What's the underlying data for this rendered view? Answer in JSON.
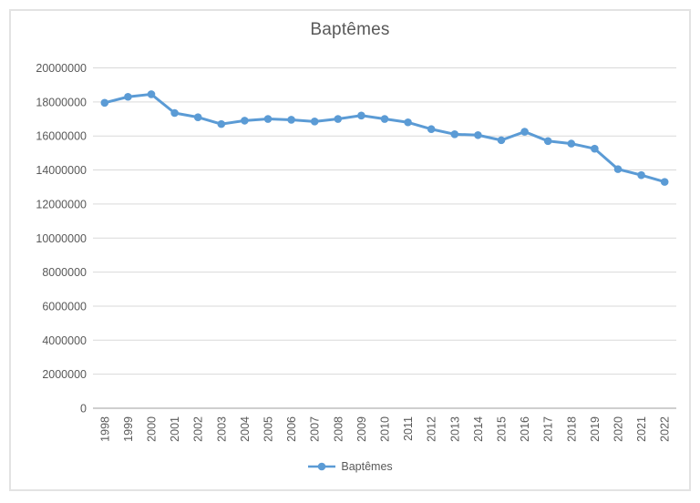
{
  "chart_style": {
    "line_color": "#5B9BD5",
    "gridline_color": "#d9d9d9",
    "axis_line_color": "#bfbfbf",
    "text_color": "#595959",
    "frame_border_color": "#e3e3e3"
  },
  "chart_data": {
    "type": "line",
    "title": "Baptêmes",
    "xlabel": "",
    "ylabel": "",
    "grid": true,
    "legend_position": "bottom",
    "x": [
      1998,
      1999,
      2000,
      2001,
      2002,
      2003,
      2004,
      2005,
      2006,
      2007,
      2008,
      2009,
      2010,
      2011,
      2012,
      2013,
      2014,
      2015,
      2016,
      2017,
      2018,
      2019,
      2020,
      2021,
      2022
    ],
    "series": [
      {
        "name": "Baptêmes",
        "color": "#5B9BD5",
        "marker": "circle",
        "values": [
          17950000,
          18300000,
          18450000,
          17350000,
          17100000,
          16700000,
          16900000,
          17000000,
          16950000,
          16850000,
          17000000,
          17200000,
          17000000,
          16800000,
          16400000,
          16100000,
          16050000,
          15750000,
          16250000,
          15700000,
          15550000,
          15250000,
          14050000,
          13700000,
          13300000
        ]
      }
    ],
    "ylim": [
      0,
      20000000
    ],
    "ytick_interval": 2000000,
    "yticks": [
      20000000,
      18000000,
      16000000,
      14000000,
      12000000,
      10000000,
      8000000,
      6000000,
      4000000,
      2000000,
      0
    ]
  }
}
